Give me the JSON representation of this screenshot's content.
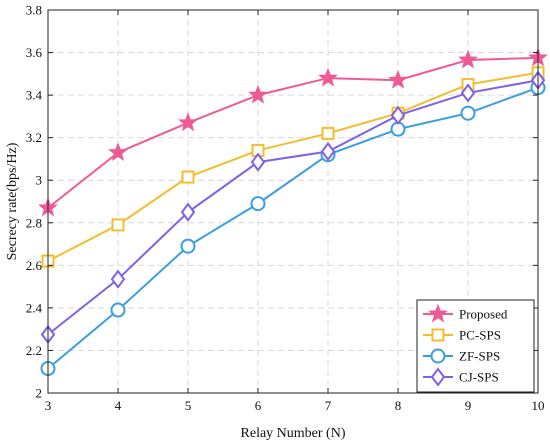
{
  "chart_data": {
    "type": "line",
    "title": "",
    "xlabel": "Relay Number (N)",
    "ylabel": "Secrecy rate(bps/Hz)",
    "x": [
      3,
      4,
      5,
      6,
      7,
      8,
      9,
      10
    ],
    "xlim": [
      3,
      10
    ],
    "ylim": [
      2,
      3.8
    ],
    "xticks": [
      "3",
      "4",
      "5",
      "6",
      "7",
      "8",
      "9",
      "10"
    ],
    "yticks": [
      "2",
      "2.2",
      "2.4",
      "2.6",
      "2.8",
      "3",
      "3.2",
      "3.4",
      "3.6",
      "3.8"
    ],
    "grid": true,
    "legend_position": "bottom-right",
    "series": [
      {
        "name": "Proposed",
        "marker": "star",
        "color": "#ef5a96",
        "values": [
          2.87,
          3.13,
          3.27,
          3.4,
          3.48,
          3.47,
          3.565,
          3.575
        ]
      },
      {
        "name": "PC-SPS",
        "marker": "square",
        "color": "#f5bd2d",
        "values": [
          2.62,
          2.79,
          3.015,
          3.14,
          3.22,
          3.315,
          3.45,
          3.505
        ]
      },
      {
        "name": "ZF-SPS",
        "marker": "circle",
        "color": "#3a9ee0",
        "values": [
          2.115,
          2.39,
          2.69,
          2.89,
          3.12,
          3.24,
          3.315,
          3.435
        ]
      },
      {
        "name": "CJ-SPS",
        "marker": "diamond",
        "color": "#8060e6",
        "values": [
          2.275,
          2.535,
          2.85,
          3.085,
          3.135,
          3.305,
          3.41,
          3.47
        ]
      }
    ]
  }
}
